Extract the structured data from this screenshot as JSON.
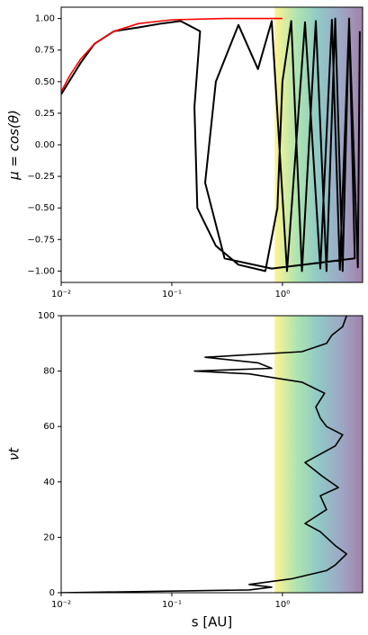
{
  "chart_data": [
    {
      "type": "line",
      "ylabel": "μ = cos(θ)",
      "xscale": "log",
      "xlim": [
        0.01,
        5.3
      ],
      "ylim": [
        -1.09,
        1.09
      ],
      "xticks": [
        {
          "value": 0.01,
          "label": "10⁻²"
        },
        {
          "value": 0.1,
          "label": "10⁻¹"
        },
        {
          "value": 1,
          "label": "10⁰"
        }
      ],
      "yticks": [
        {
          "value": -1,
          "label": "−1.00"
        },
        {
          "value": -0.75,
          "label": "−0.75"
        },
        {
          "value": -0.5,
          "label": "−0.50"
        },
        {
          "value": -0.25,
          "label": "−0.25"
        },
        {
          "value": 0,
          "label": "0.00"
        },
        {
          "value": 0.25,
          "label": "0.25"
        },
        {
          "value": 0.5,
          "label": "0.50"
        },
        {
          "value": 0.75,
          "label": "0.75"
        },
        {
          "value": 1,
          "label": "1.00"
        }
      ],
      "background": {
        "x_start": 0.85,
        "colors": [
          "#fde725",
          "#5ec962",
          "#21918c",
          "#3b528b",
          "#440154"
        ],
        "opacity": 0.5
      },
      "series": [
        {
          "color": "#000000",
          "x": [
            0.01,
            0.015,
            0.02,
            0.03,
            0.05,
            0.08,
            0.12,
            0.18,
            0.16,
            0.17,
            0.25,
            0.4,
            0.7,
            0.9,
            1.0,
            1.2,
            1.5,
            2.0,
            2.5,
            3.0,
            3.5,
            4.0,
            4.5,
            0.8,
            0.3,
            0.2,
            0.25,
            0.4,
            0.6,
            0.8,
            1.1,
            1.6,
            2.2,
            2.8,
            3.3,
            4.0,
            4.8,
            5.0
          ],
          "values": [
            0.4,
            0.65,
            0.8,
            0.9,
            0.93,
            0.96,
            0.98,
            0.9,
            0.3,
            -0.5,
            -0.8,
            -0.95,
            -1.0,
            -0.5,
            0.5,
            0.98,
            -1.0,
            0.98,
            -1.0,
            1.0,
            -1.0,
            1.0,
            -0.9,
            -0.98,
            -0.9,
            -0.3,
            0.5,
            0.95,
            0.6,
            0.98,
            -1.0,
            0.97,
            -0.98,
            0.99,
            -0.99,
            0.98,
            -0.97,
            0.9
          ]
        },
        {
          "color": "#ff0000",
          "x": [
            0.01,
            0.012,
            0.015,
            0.02,
            0.03,
            0.05,
            0.1,
            0.3,
            1.0
          ],
          "values": [
            0.42,
            0.55,
            0.68,
            0.8,
            0.9,
            0.96,
            0.99,
            1.0,
            1.0
          ]
        }
      ]
    },
    {
      "type": "line",
      "ylabel": "νt",
      "xlabel": "s [AU]",
      "xscale": "log",
      "xlim": [
        0.01,
        5.3
      ],
      "ylim": [
        0,
        100
      ],
      "xticks": [
        {
          "value": 0.01,
          "label": "10⁻²"
        },
        {
          "value": 0.1,
          "label": "10⁻¹"
        },
        {
          "value": 1,
          "label": "10⁰"
        }
      ],
      "yticks": [
        0,
        20,
        40,
        60,
        80,
        100
      ],
      "background": {
        "x_start": 0.85,
        "colors": [
          "#fde725",
          "#5ec962",
          "#21918c",
          "#3b528b",
          "#440154"
        ],
        "opacity": 0.5
      },
      "series": [
        {
          "color": "#000000",
          "x": [
            0.01,
            0.5,
            0.8,
            0.5,
            1.2,
            2.5,
            3.0,
            3.8,
            3.0,
            2.2,
            1.6,
            2.5,
            2.2,
            3.2,
            2.3,
            1.6,
            3.0,
            3.5,
            2.5,
            2.2,
            2.0,
            2.4,
            1.5,
            0.5,
            0.16,
            0.8,
            0.6,
            0.2,
            1.5,
            2.5,
            2.8,
            3.5,
            3.8
          ],
          "values": [
            0,
            1,
            2,
            3,
            5,
            8,
            10,
            14,
            17,
            22,
            25,
            30,
            35,
            38,
            42,
            47,
            53,
            57,
            60,
            63,
            67,
            72,
            76,
            79,
            80,
            81,
            83,
            85,
            87,
            90,
            93,
            96,
            100
          ]
        }
      ]
    }
  ]
}
